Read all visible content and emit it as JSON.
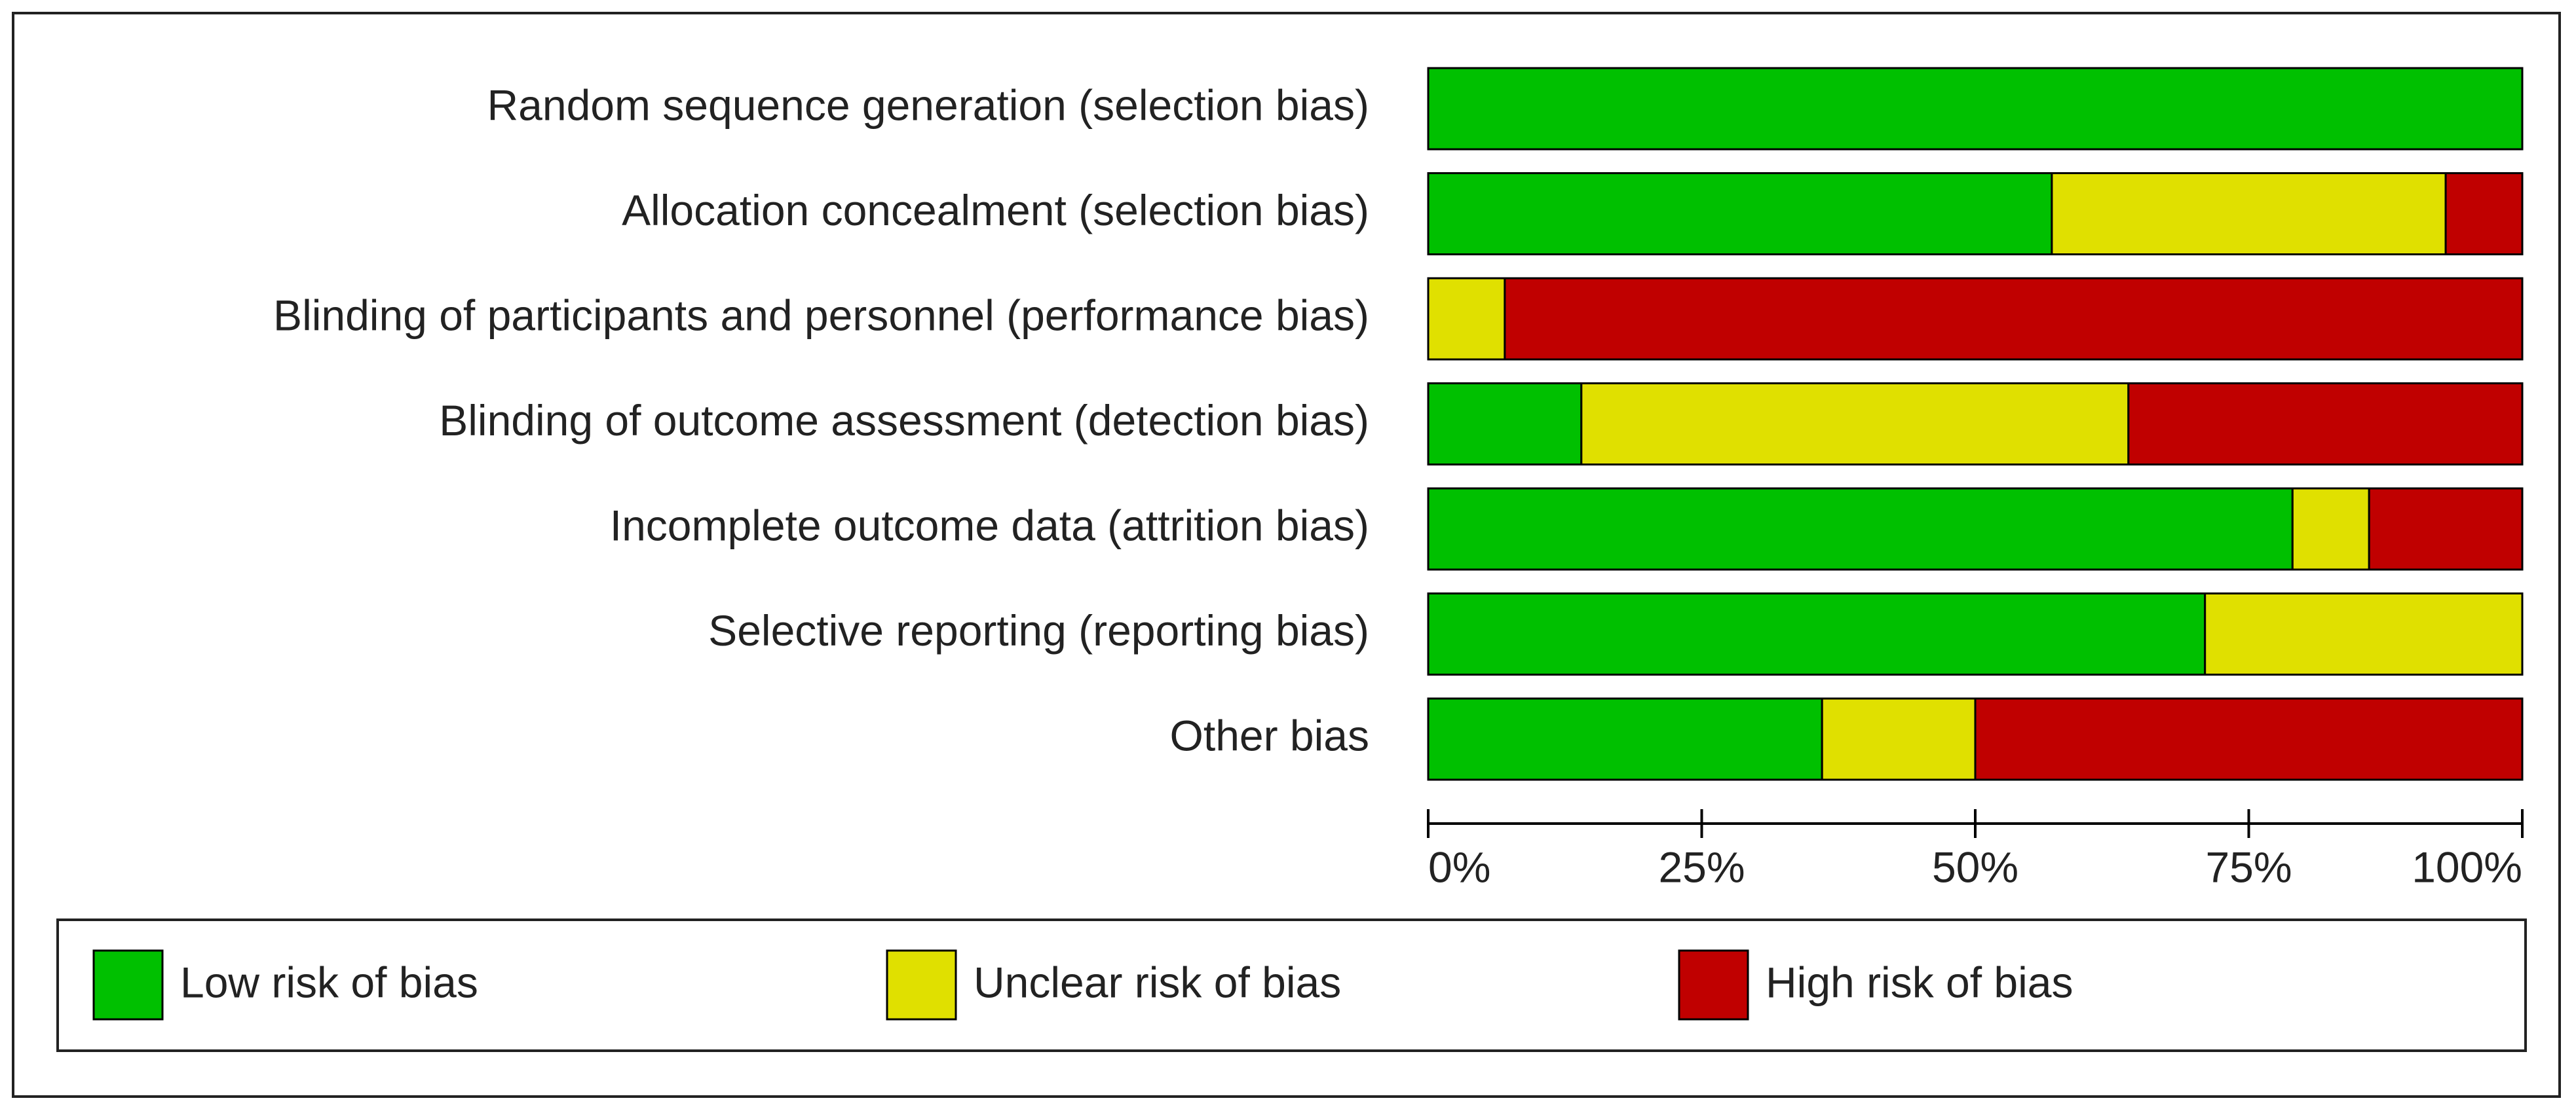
{
  "chart_data": {
    "type": "stacked-barh",
    "categories": [
      "Random sequence generation (selection bias)",
      "Allocation concealment (selection bias)",
      "Blinding of participants and personnel (performance bias)",
      "Blinding of outcome assessment (detection bias)",
      "Incomplete outcome data (attrition bias)",
      "Selective reporting (reporting bias)",
      "Other bias"
    ],
    "series": [
      {
        "name": "Low risk of bias",
        "color": "#00c000",
        "values": [
          100,
          57,
          0,
          14,
          79,
          71,
          36
        ]
      },
      {
        "name": "Unclear risk of bias",
        "color": "#e0e000",
        "values": [
          0,
          36,
          7,
          50,
          7,
          29,
          14
        ]
      },
      {
        "name": "High risk of bias",
        "color": "#c00000",
        "values": [
          0,
          7,
          93,
          36,
          14,
          0,
          50
        ]
      }
    ],
    "xlim": [
      0,
      100
    ],
    "xticks": [
      {
        "value": 0,
        "label": "0%"
      },
      {
        "value": 25,
        "label": "25%"
      },
      {
        "value": 50,
        "label": "50%"
      },
      {
        "value": 75,
        "label": "75%"
      },
      {
        "value": 100,
        "label": "100%"
      }
    ]
  }
}
